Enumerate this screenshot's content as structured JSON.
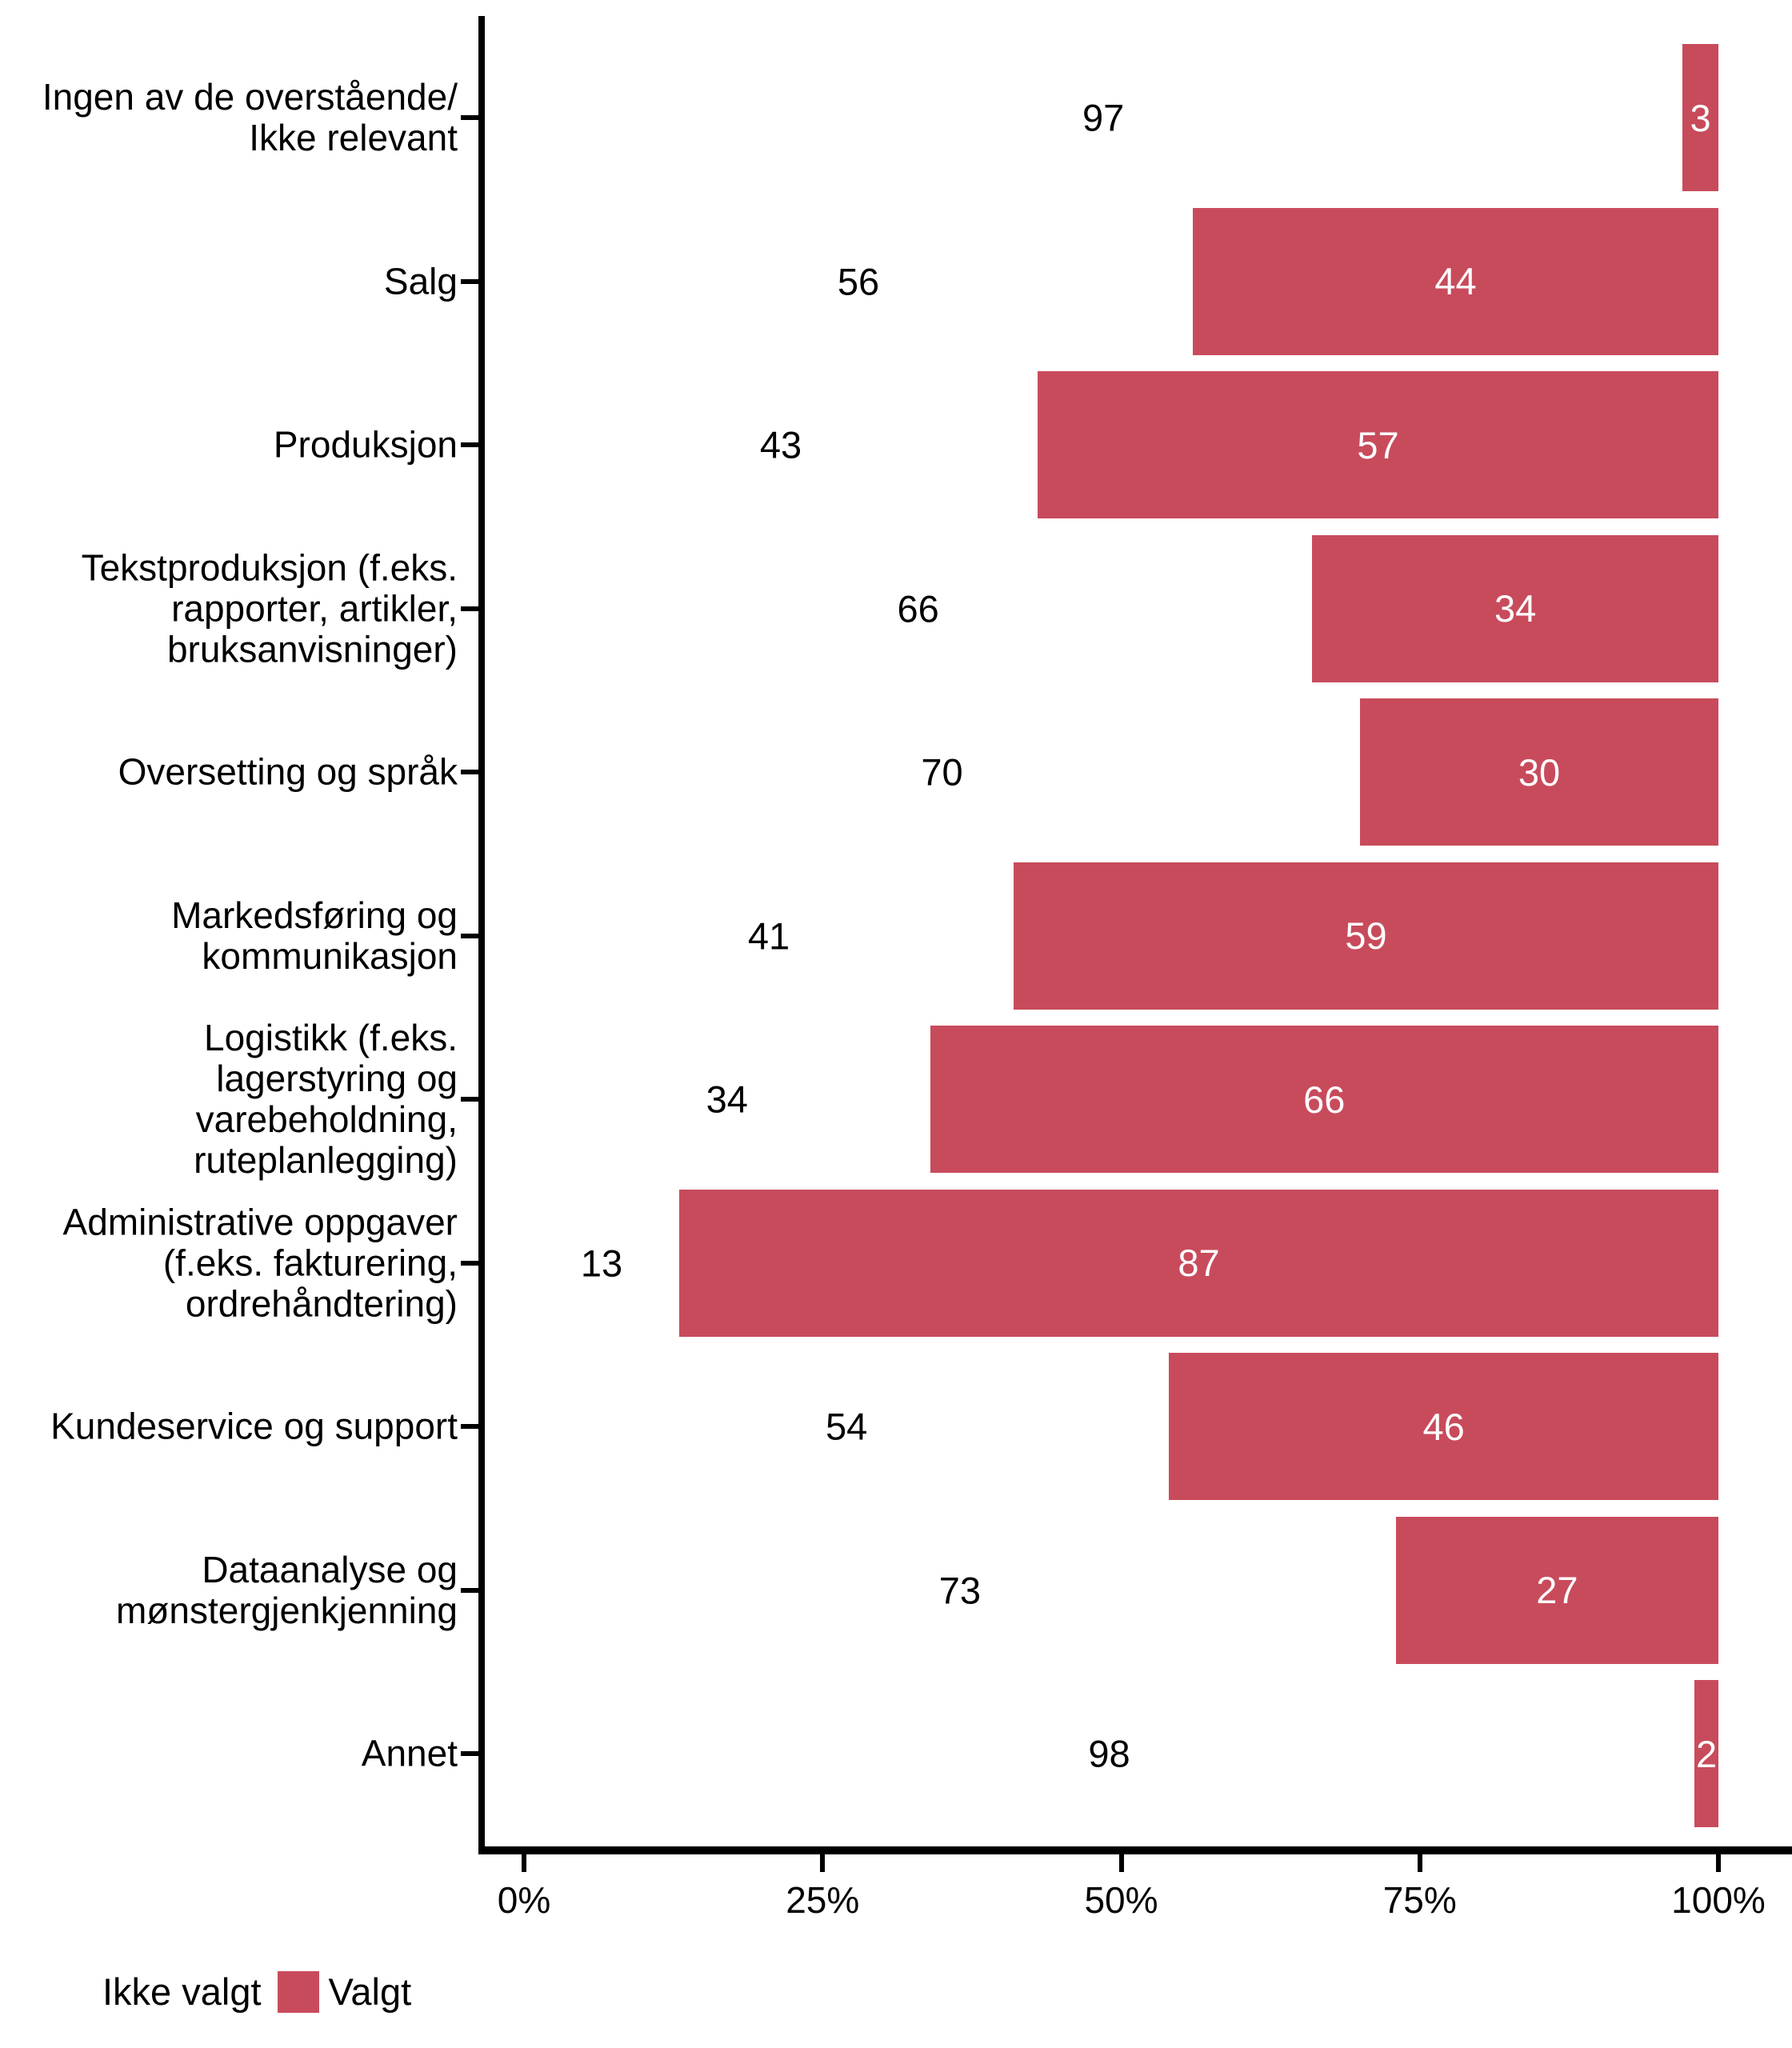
{
  "chart_data": {
    "type": "bar",
    "orientation": "horizontal",
    "stacked": true,
    "unit": "percent",
    "title": "",
    "xlabel": "",
    "ylabel": "",
    "categories": [
      "Ingen av de overstående/\nIkke relevant",
      "Salg",
      "Produksjon",
      "Tekstproduksjon (f.eks.\nrapporter, artikler,\nbruksanvisninger)",
      "Oversetting og språk",
      "Markedsføring og\nkommunikasjon",
      "Logistikk (f.eks.\nlagerstyring og\nvarebeholdning,\nruteplanlegging)",
      "Administrative oppgaver\n(f.eks. fakturering,\nordrehåndtering)",
      "Kundeservice og support",
      "Dataanalyse og\nmønstergjenkjenning",
      "Annet"
    ],
    "series": [
      {
        "name": "Ikke valgt",
        "color": "#FFFFFF",
        "label_color": "#000000",
        "values": [
          97,
          56,
          43,
          66,
          70,
          41,
          34,
          13,
          54,
          73,
          98
        ]
      },
      {
        "name": "Valgt",
        "color": "#C84B5C",
        "label_color": "#FFFFFF",
        "values": [
          3,
          44,
          57,
          34,
          30,
          59,
          66,
          87,
          46,
          27,
          2
        ]
      }
    ],
    "x_axis": {
      "min": 0,
      "max": 100,
      "ticks": [
        "0%",
        "25%",
        "50%",
        "75%",
        "100%"
      ],
      "tick_values": [
        0,
        25,
        50,
        75,
        100
      ]
    },
    "grid": false,
    "axis_color": "#000000",
    "legend": {
      "position": "bottom-left",
      "items": [
        {
          "label": "Ikke valgt",
          "color": "#FFFFFF"
        },
        {
          "label": "Valgt",
          "color": "#C84B5C"
        }
      ]
    }
  }
}
